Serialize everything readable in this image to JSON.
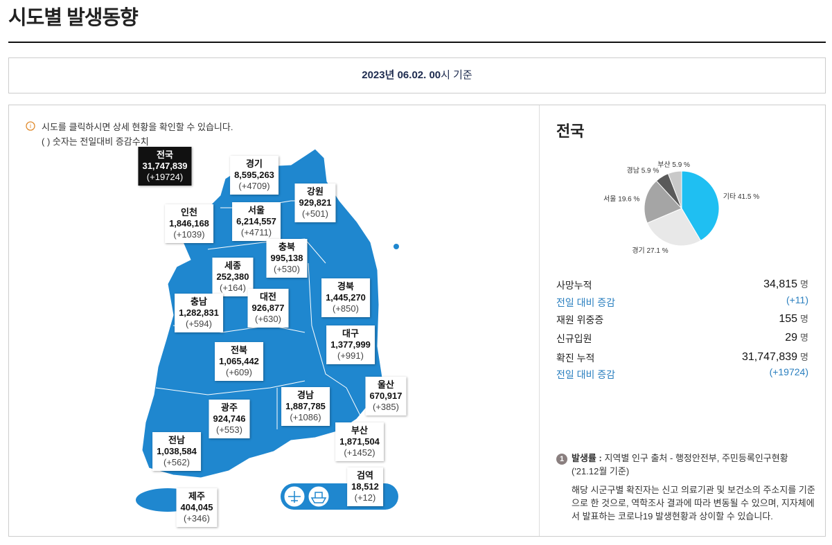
{
  "header": {
    "title": "시도별 발생동향"
  },
  "date": {
    "bold": "2023년 06.02. 00",
    "rest": "시 기준"
  },
  "notice": {
    "icon": "i",
    "lines": [
      "시도를 클릭하시면 상세 현황을 확인할 수 있습니다.",
      "( ) 숫자는 전일대비 증감수치"
    ]
  },
  "regions": [
    {
      "name": "전국",
      "count": "31,747,839",
      "change": "(+19724)"
    },
    {
      "name": "경기",
      "count": "8,595,263",
      "change": "(+4709)"
    },
    {
      "name": "강원",
      "count": "929,821",
      "change": "(+501)"
    },
    {
      "name": "인천",
      "count": "1,846,168",
      "change": "(+1039)"
    },
    {
      "name": "서울",
      "count": "6,214,557",
      "change": "(+4711)"
    },
    {
      "name": "충북",
      "count": "995,138",
      "change": "(+530)"
    },
    {
      "name": "세종",
      "count": "252,380",
      "change": "(+164)"
    },
    {
      "name": "경북",
      "count": "1,445,270",
      "change": "(+850)"
    },
    {
      "name": "충남",
      "count": "1,282,831",
      "change": "(+594)"
    },
    {
      "name": "대전",
      "count": "926,877",
      "change": "(+630)"
    },
    {
      "name": "대구",
      "count": "1,377,999",
      "change": "(+991)"
    },
    {
      "name": "전북",
      "count": "1,065,442",
      "change": "(+609)"
    },
    {
      "name": "울산",
      "count": "670,917",
      "change": "(+385)"
    },
    {
      "name": "경남",
      "count": "1,887,785",
      "change": "(+1086)"
    },
    {
      "name": "광주",
      "count": "924,746",
      "change": "(+553)"
    },
    {
      "name": "부산",
      "count": "1,871,504",
      "change": "(+1452)"
    },
    {
      "name": "전남",
      "count": "1,038,584",
      "change": "(+562)"
    },
    {
      "name": "검역",
      "count": "18,512",
      "change": "(+12)"
    },
    {
      "name": "제주",
      "count": "404,045",
      "change": "(+346)"
    }
  ],
  "chart_data": {
    "type": "pie",
    "title": "전국",
    "categories": [
      "기타",
      "경기",
      "서울",
      "경남",
      "부산"
    ],
    "values": [
      41.5,
      27.1,
      19.6,
      5.9,
      5.9
    ],
    "value_labels": [
      "41.5 %",
      "27.1 %",
      "19.6 %",
      "5.9 %",
      "5.9 %"
    ],
    "colors": [
      "#1fbff2",
      "#e8e8e8",
      "#a5a5a5",
      "#5a5a5a",
      "#c9c9c9"
    ]
  },
  "stats": [
    {
      "label": "사망누적",
      "value": "34,815",
      "unit": "명"
    },
    {
      "label": "전일 대비 증감",
      "value": "(+11)"
    },
    {
      "label": "재원 위중증",
      "value": "155",
      "unit": "명"
    },
    {
      "label": "신규입원",
      "value": "29",
      "unit": "명"
    },
    {
      "label": "확진 누적",
      "value": "31,747,839",
      "unit": "명"
    },
    {
      "label": "전일 대비 증감",
      "value": "(+19724)"
    }
  ],
  "footnote": {
    "number": "1",
    "title": "발생률 :",
    "text": "지역별 인구 출처 - 행정안전부, 주민등록인구현황",
    "date": "('21.12월 기준)",
    "paragraph": "해당 시군구별 확진자는 신고 의료기관 및 보건소의 주소지를 기준으로 한 것으로, 역학조사 결과에 따라 변동될 수 있으며, 지자체에서 발표하는 코로나19 발생현황과 상이할 수 있습니다."
  }
}
